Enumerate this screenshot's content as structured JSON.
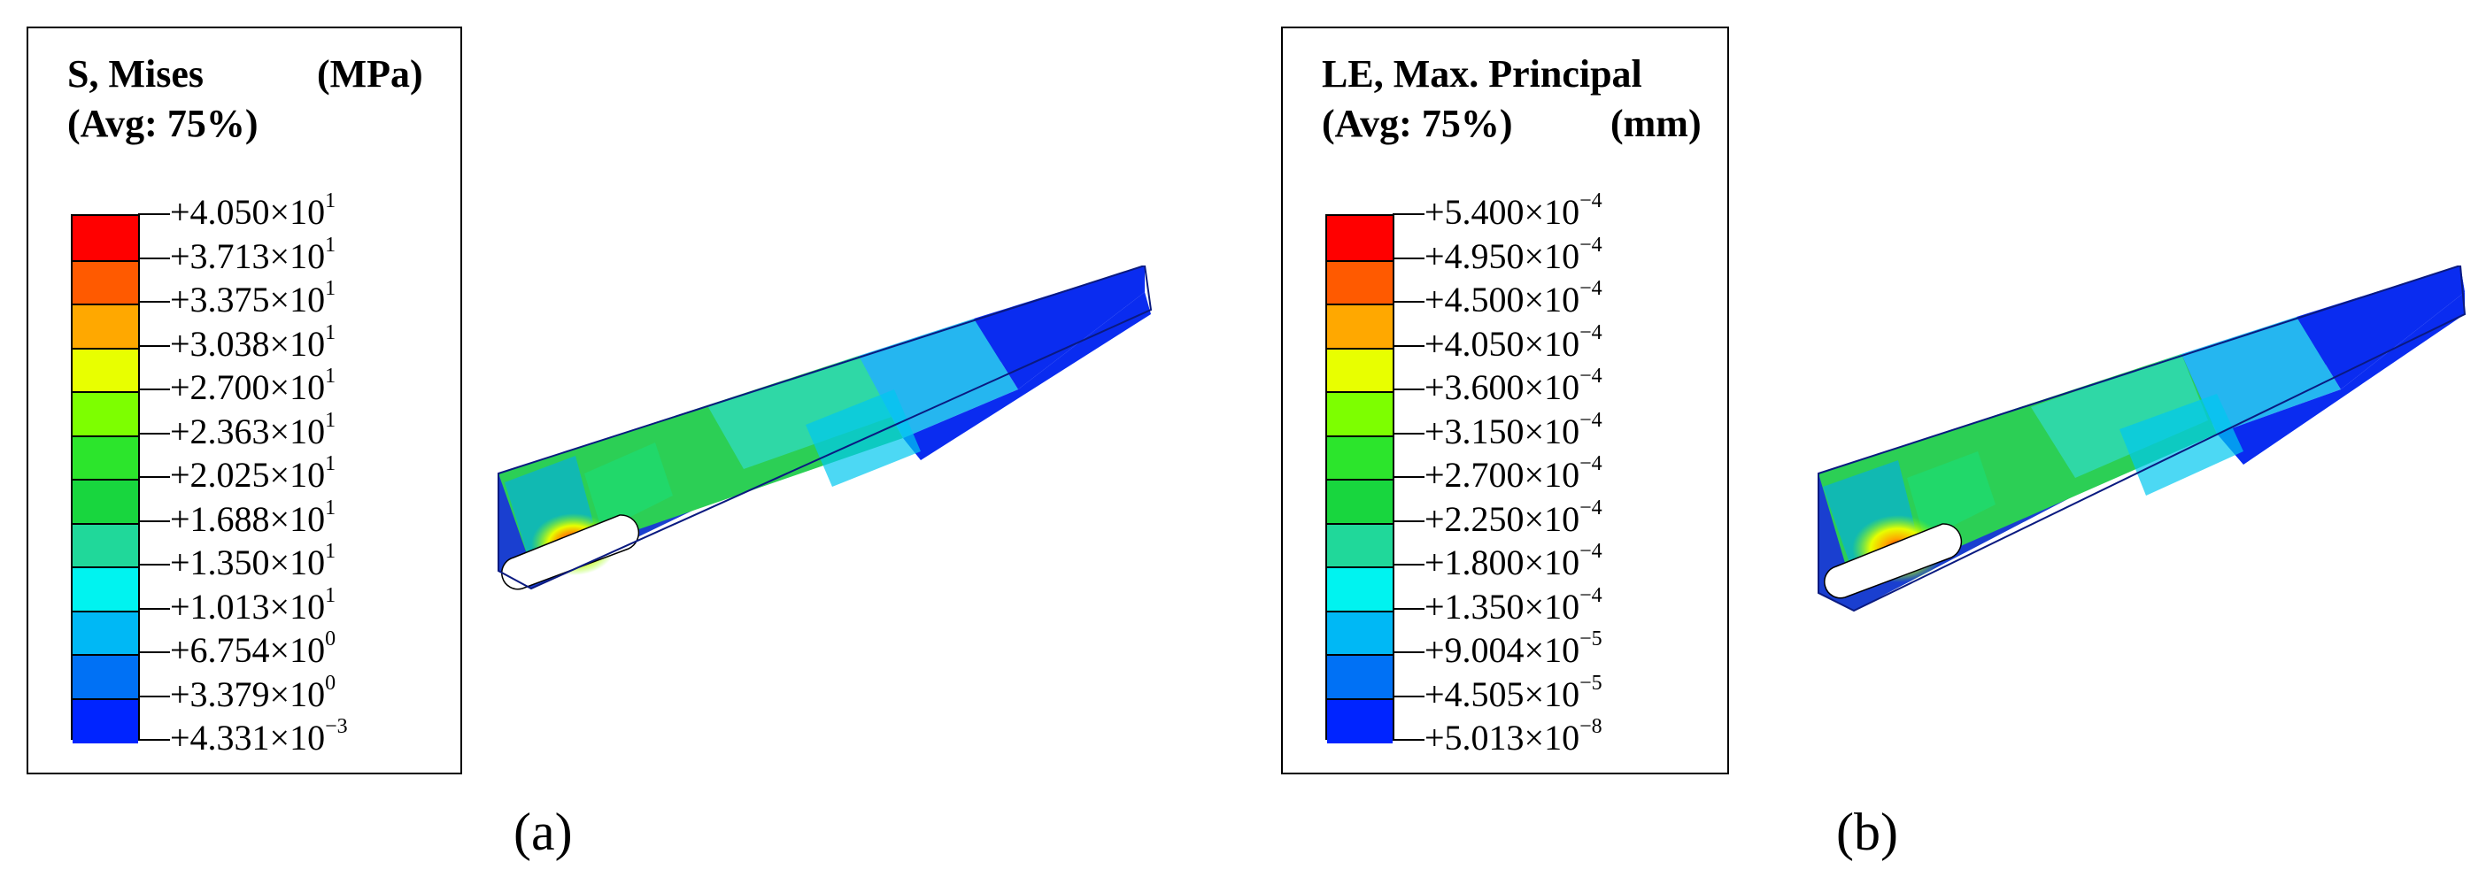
{
  "panels": [
    {
      "id": "a",
      "legend": {
        "title_line1": "S, Mises",
        "units": "(MPa)",
        "title_line2": "(Avg: 75%)",
        "values": [
          {
            "mantissa": "+4.050×10",
            "exp": "1"
          },
          {
            "mantissa": "+3.713×10",
            "exp": "1"
          },
          {
            "mantissa": "+3.375×10",
            "exp": "1"
          },
          {
            "mantissa": "+3.038×10",
            "exp": "1"
          },
          {
            "mantissa": "+2.700×10",
            "exp": "1"
          },
          {
            "mantissa": "+2.363×10",
            "exp": "1"
          },
          {
            "mantissa": "+2.025×10",
            "exp": "1"
          },
          {
            "mantissa": "+1.688×10",
            "exp": "1"
          },
          {
            "mantissa": "+1.350×10",
            "exp": "1"
          },
          {
            "mantissa": "+1.013×10",
            "exp": "1"
          },
          {
            "mantissa": "+6.754×10",
            "exp": "0"
          },
          {
            "mantissa": "+3.379×10",
            "exp": "0"
          },
          {
            "mantissa": "+4.331×10",
            "exp": "−3"
          }
        ]
      },
      "label": "(a)"
    },
    {
      "id": "b",
      "legend": {
        "title_line1": "LE, Max. Principal",
        "units": "(mm)",
        "title_line2": "(Avg: 75%)",
        "values": [
          {
            "mantissa": "+5.400×10",
            "exp": "−4"
          },
          {
            "mantissa": "+4.950×10",
            "exp": "−4"
          },
          {
            "mantissa": "+4.500×10",
            "exp": "−4"
          },
          {
            "mantissa": "+4.050×10",
            "exp": "−4"
          },
          {
            "mantissa": "+3.600×10",
            "exp": "−4"
          },
          {
            "mantissa": "+3.150×10",
            "exp": "−4"
          },
          {
            "mantissa": "+2.700×10",
            "exp": "−4"
          },
          {
            "mantissa": "+2.250×10",
            "exp": "−4"
          },
          {
            "mantissa": "+1.800×10",
            "exp": "−4"
          },
          {
            "mantissa": "+1.350×10",
            "exp": "−4"
          },
          {
            "mantissa": "+9.004×10",
            "exp": "−5"
          },
          {
            "mantissa": "+4.505×10",
            "exp": "−5"
          },
          {
            "mantissa": "+5.013×10",
            "exp": "−8"
          }
        ]
      },
      "label": "(b)"
    }
  ],
  "colormap": [
    "#ff0000",
    "#ff5a00",
    "#ffa800",
    "#e8ff00",
    "#7dff00",
    "#2ce52c",
    "#18d63e",
    "#20d89a",
    "#00f3f0",
    "#00b8f5",
    "#0071f5",
    "#0024ff"
  ]
}
